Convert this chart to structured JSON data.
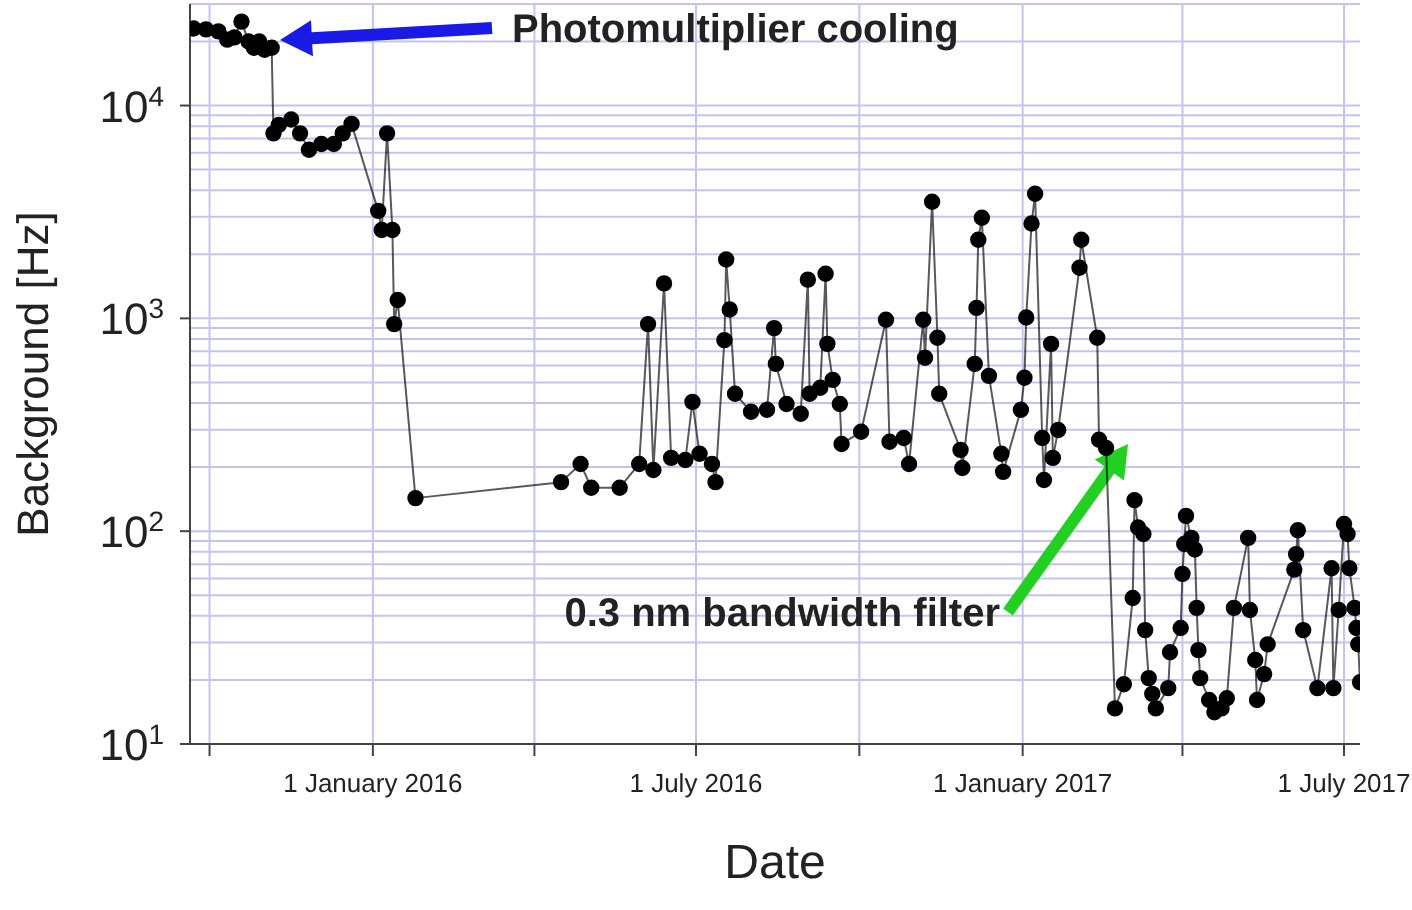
{
  "chart_data": {
    "type": "line",
    "xlabel": "Date",
    "ylabel": "Background [Hz]",
    "x": [
      "2015-09-22",
      "2015-09-29",
      "2015-10-06",
      "2015-10-11",
      "2015-10-15",
      "2015-10-19",
      "2015-10-23",
      "2015-10-26",
      "2015-10-29",
      "2015-11-01",
      "2015-11-05",
      "2015-11-06",
      "2015-11-09",
      "2015-11-16",
      "2015-11-21",
      "2015-11-26",
      "2015-12-03",
      "2015-12-10",
      "2015-12-15",
      "2015-12-20",
      "2016-01-04",
      "2016-01-06",
      "2016-01-09",
      "2016-01-12",
      "2016-01-13",
      "2016-01-15",
      "2016-01-25",
      "2016-04-16",
      "2016-04-27",
      "2016-05-03",
      "2016-05-19",
      "2016-05-30",
      "2016-06-04",
      "2016-06-07",
      "2016-06-13",
      "2016-06-17",
      "2016-06-25",
      "2016-06-29",
      "2016-07-03",
      "2016-07-10",
      "2016-07-12",
      "2016-07-17",
      "2016-07-18",
      "2016-07-20",
      "2016-07-23",
      "2016-08-01",
      "2016-08-10",
      "2016-08-14",
      "2016-08-15",
      "2016-08-21",
      "2016-08-29",
      "2016-09-02",
      "2016-09-03",
      "2016-09-09",
      "2016-09-12",
      "2016-09-13",
      "2016-09-16",
      "2016-09-20",
      "2016-09-21",
      "2016-10-02",
      "2016-10-16",
      "2016-10-18",
      "2016-10-26",
      "2016-10-29",
      "2016-11-06",
      "2016-11-07",
      "2016-11-11",
      "2016-11-14",
      "2016-11-15",
      "2016-11-27",
      "2016-11-28",
      "2016-12-05",
      "2016-12-06",
      "2016-12-07",
      "2016-12-09",
      "2016-12-13",
      "2016-12-20",
      "2016-12-21",
      "2016-12-31",
      "2017-01-02",
      "2017-01-03",
      "2017-01-06",
      "2017-01-08",
      "2017-01-12",
      "2017-01-13",
      "2017-01-17",
      "2017-01-18",
      "2017-01-21",
      "2017-02-02",
      "2017-02-03",
      "2017-02-12",
      "2017-02-13",
      "2017-02-17",
      "2017-02-22",
      "2017-02-27",
      "2017-03-04",
      "2017-03-05",
      "2017-03-07",
      "2017-03-10",
      "2017-03-11",
      "2017-03-13",
      "2017-03-15",
      "2017-03-17",
      "2017-03-24",
      "2017-03-25",
      "2017-03-31",
      "2017-04-01",
      "2017-04-02",
      "2017-04-03",
      "2017-04-06",
      "2017-04-08",
      "2017-04-09",
      "2017-04-10",
      "2017-04-11",
      "2017-04-16",
      "2017-04-19",
      "2017-04-23",
      "2017-04-26",
      "2017-04-30",
      "2017-05-08",
      "2017-05-09",
      "2017-05-12",
      "2017-05-13",
      "2017-05-17",
      "2017-05-19",
      "2017-06-03",
      "2017-06-04",
      "2017-06-05",
      "2017-06-08",
      "2017-06-16",
      "2017-06-24",
      "2017-06-25",
      "2017-06-28",
      "2017-07-01",
      "2017-07-03",
      "2017-07-04",
      "2017-07-07",
      "2017-07-08",
      "2017-07-09",
      "2017-07-10"
    ],
    "series": [
      {
        "color": "#000000",
        "values": [
          23000,
          22800,
          22300,
          20400,
          20900,
          24800,
          20000,
          18700,
          20000,
          18300,
          18700,
          7400,
          8100,
          8600,
          7400,
          6200,
          6600,
          6600,
          7400,
          8200,
          3200,
          2600,
          7400,
          2600,
          940,
          1220,
          143,
          170,
          207,
          160,
          160,
          207,
          940,
          194,
          1460,
          221,
          216,
          405,
          231,
          207,
          170,
          790,
          1890,
          1100,
          442,
          364,
          372,
          900,
          611,
          396,
          356,
          1520,
          442,
          472,
          1620,
          759,
          514,
          396,
          257,
          293,
          985,
          263,
          274,
          207,
          985,
          653,
          3530,
          811,
          442,
          241,
          198,
          611,
          1120,
          2340,
          2970,
          537,
          231,
          190,
          372,
          526,
          1010,
          2790,
          3850,
          274,
          174,
          759,
          221,
          299,
          1730,
          2340,
          811,
          269,
          246,
          14.7,
          19.1,
          48.5,
          140,
          104,
          97,
          34.3,
          20.4,
          17.2,
          14.7,
          18.3,
          27,
          35.1,
          63,
          87,
          118,
          93,
          82,
          43.6,
          27.6,
          20.4,
          16.1,
          14.1,
          14.7,
          16.4,
          43.6,
          93,
          42.6,
          24.8,
          16.1,
          21.3,
          29.4,
          66,
          78,
          101,
          34.3,
          18.3,
          67,
          18.3,
          42.6,
          108,
          97,
          67,
          43.6,
          35.1,
          29.4,
          19.5
        ]
      }
    ],
    "xlim": [
      "2015-09-20",
      "2017-07-10"
    ],
    "xticks": [
      {
        "value": "2015-10-01",
        "label": null
      },
      {
        "value": "2016-01-01",
        "label": "1 January 2016"
      },
      {
        "value": "2016-04-01",
        "label": null
      },
      {
        "value": "2016-07-01",
        "label": "1 July 2016"
      },
      {
        "value": "2016-10-01",
        "label": null
      },
      {
        "value": "2017-01-01",
        "label": "1 January 2017"
      },
      {
        "value": "2017-04-01",
        "label": null
      },
      {
        "value": "2017-07-01",
        "label": "1 July 2017"
      }
    ],
    "ylim": [
      10,
      30000
    ],
    "yticks": [
      {
        "value": 10,
        "label": "10$^{1}$"
      },
      {
        "value": 100,
        "label": "10$^{2}$"
      },
      {
        "value": 1000,
        "label": "10$^{3}$"
      },
      {
        "value": 10000,
        "label": "10$^{4}$"
      }
    ],
    "log": "y",
    "grid": true,
    "marker": "circle",
    "line_style": "solid",
    "annotations": [
      "Photomultiplier cooling",
      "0.3 nm bandwidth filter"
    ]
  }
}
